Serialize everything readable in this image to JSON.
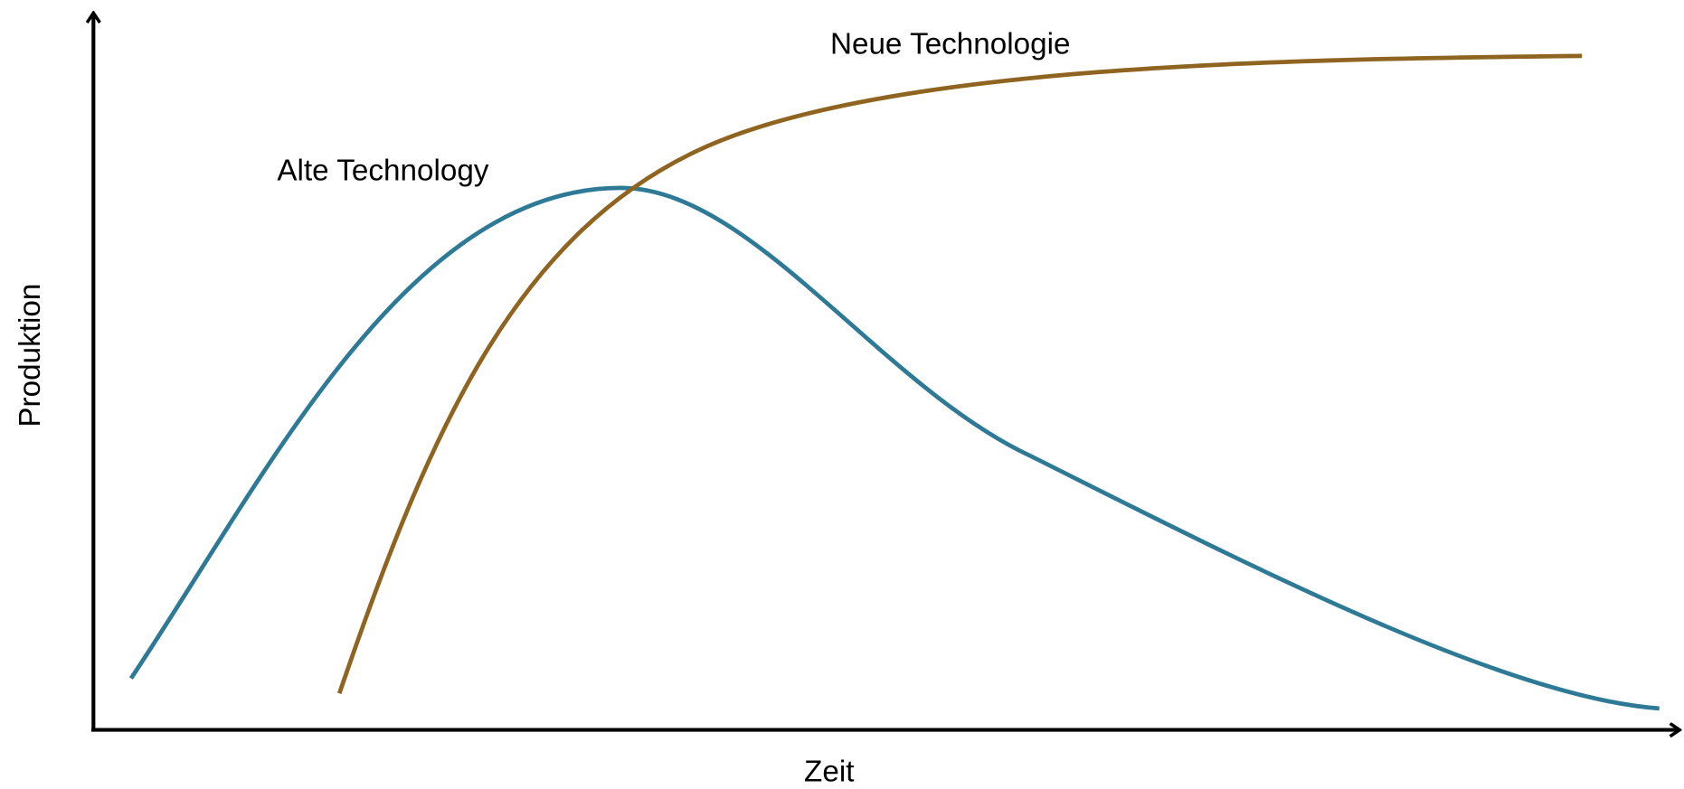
{
  "labels": {
    "new_technology": "Neue Technologie",
    "old_technology": "Alte Technology"
  },
  "axes": {
    "y_label": "Produktion",
    "x_label": "Zeit"
  }
}
